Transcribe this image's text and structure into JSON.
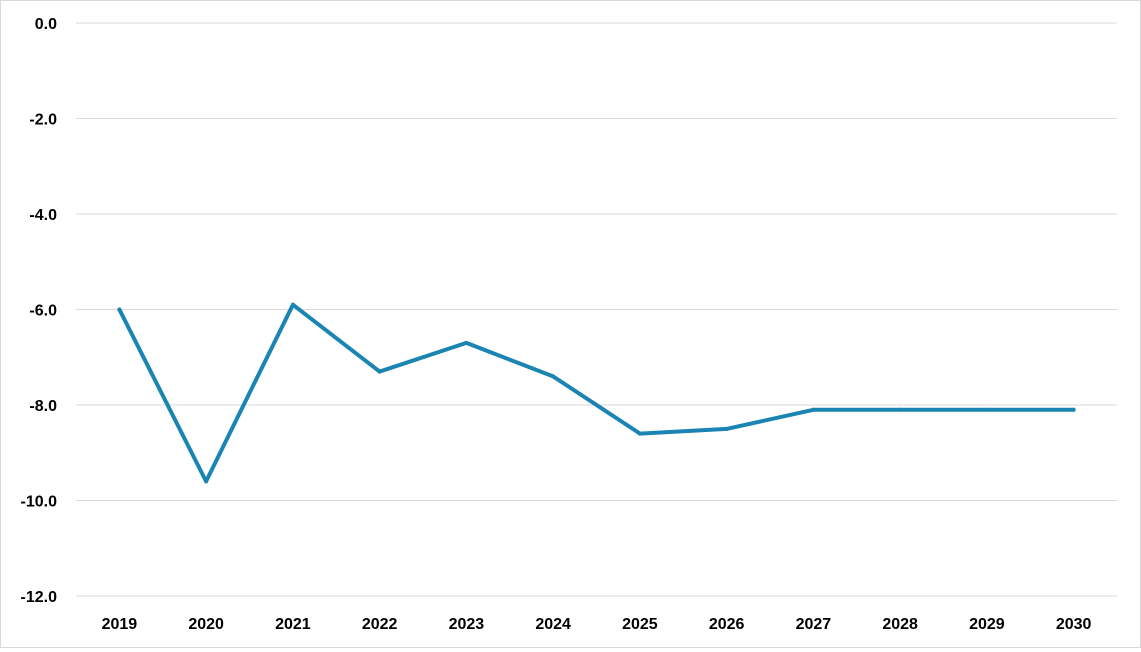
{
  "chart_data": {
    "type": "line",
    "title": "",
    "xlabel": "",
    "ylabel": "",
    "categories": [
      "2019",
      "2020",
      "2021",
      "2022",
      "2023",
      "2024",
      "2025",
      "2026",
      "2027",
      "2028",
      "2029",
      "2030"
    ],
    "series": [
      {
        "values": [
          -6.0,
          -9.6,
          -5.9,
          -7.3,
          -6.7,
          -7.4,
          -8.6,
          -8.5,
          -8.1,
          -8.1,
          -8.1,
          -8.1
        ],
        "color": "#1a85b3"
      }
    ],
    "ylim": [
      -12.0,
      0.0
    ],
    "yticks": [
      "0.0",
      "-2.0",
      "-4.0",
      "-6.0",
      "-8.0",
      "-10.0",
      "-12.0"
    ],
    "grid": true,
    "legend": "none",
    "gridline_color": "#d9d9d9"
  }
}
